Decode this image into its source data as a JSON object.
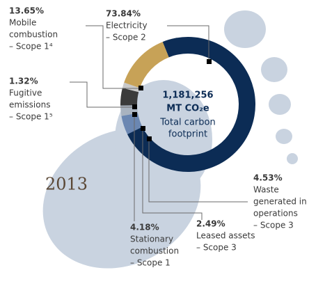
{
  "chart_data": {
    "type": "donut",
    "categories": [
      [
        "Electricity",
        "– Scope 2"
      ],
      [
        "Waste",
        "generated in",
        "operations",
        "– Scope 3"
      ],
      [
        "Leased assets",
        "– Scope 3"
      ],
      [
        "Stationary",
        "combustion",
        "– Scope 1"
      ],
      [
        "Fugitive",
        "emissions",
        "– Scope 1⁵"
      ],
      [
        "Mobile",
        "combustion",
        "– Scope 1⁴"
      ]
    ],
    "values": [
      73.84,
      4.53,
      2.49,
      4.18,
      1.32,
      13.65
    ],
    "value_labels": [
      "73.84%",
      "4.53%",
      "2.49%",
      "4.18%",
      "1.32%",
      "13.65%"
    ],
    "colors": [
      "#0c2c55",
      "#6b87b2",
      "#a9b3c0",
      "#3b3b3b",
      "#c9c9c9",
      "#c7a257"
    ],
    "center_text": [
      "1,181,256",
      "MT CO₂e",
      "Total carbon",
      "footprint"
    ],
    "annotation": "2013"
  }
}
